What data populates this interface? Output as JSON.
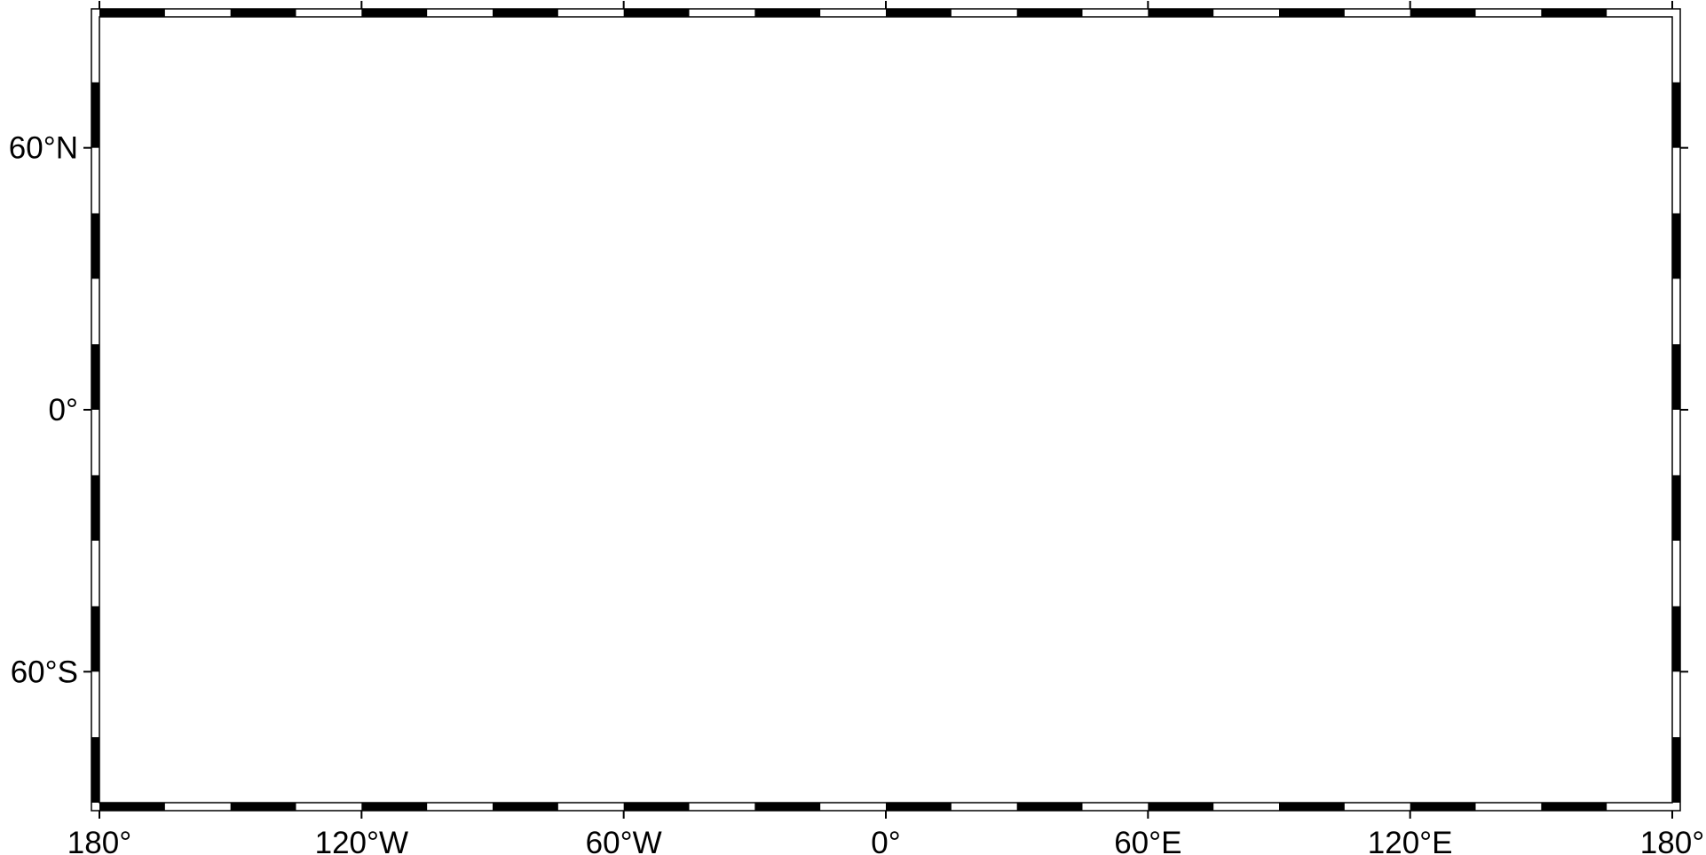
{
  "map": {
    "projection": "equidistant-cylindrical",
    "region": {
      "lon_min": -180,
      "lon_max": 180,
      "lat_min": -90,
      "lat_max": 90
    },
    "frame_style": "fancy-checkerboard",
    "frame_color": "#000000",
    "background_color": "#ffffff",
    "frame_interval_deg": 15,
    "lon_ticks": [
      {
        "value": -180,
        "label": "180°"
      },
      {
        "value": -120,
        "label": "120°W"
      },
      {
        "value": -60,
        "label": "60°W"
      },
      {
        "value": 0,
        "label": "0°"
      },
      {
        "value": 60,
        "label": "60°E"
      },
      {
        "value": 120,
        "label": "120°E"
      },
      {
        "value": 180,
        "label": "180°"
      }
    ],
    "lat_ticks": [
      {
        "value": 60,
        "label": "60°N"
      },
      {
        "value": 0,
        "label": "0°"
      },
      {
        "value": -60,
        "label": "60°S"
      }
    ]
  }
}
